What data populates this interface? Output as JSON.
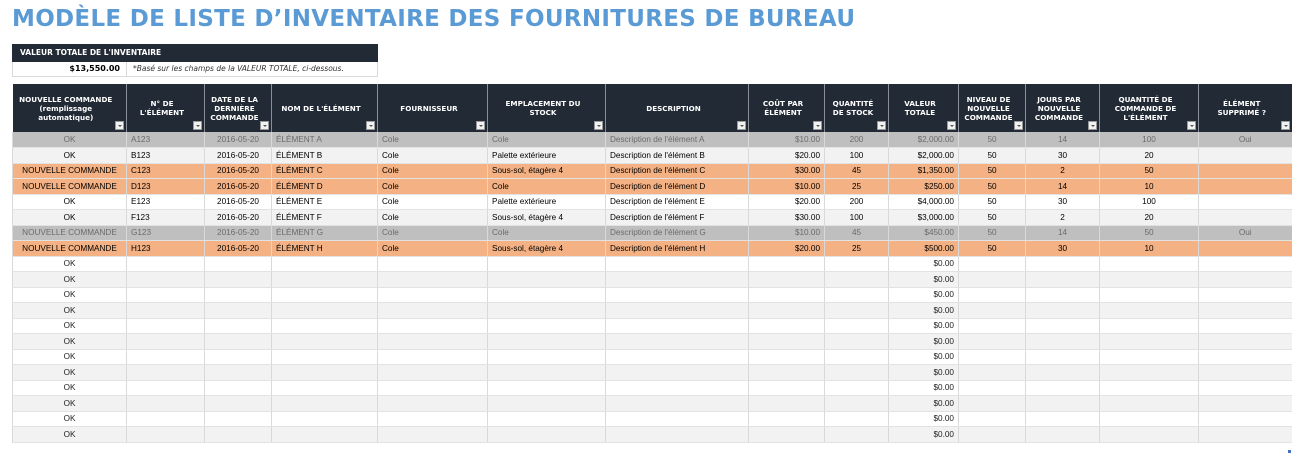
{
  "title": "MODÈLE DE LISTE D’INVENTAIRE DES FOURNITURES DE BUREAU",
  "summary": {
    "header": "VALEUR TOTALE DE L'INVENTAIRE",
    "value": "$13,550.00",
    "note": "*Basé sur les champs de la VALEUR TOTALE, ci-dessous."
  },
  "colors": {
    "title": "#5b9bd5",
    "header_bg": "#222a35",
    "reorder_row": "#f4b183",
    "deleted_row": "#bfbfbf",
    "stripe_row": "#f2f2f2"
  },
  "table": {
    "columns": [
      "NOUVELLE COMMANDE (remplissage automatique)",
      "N° DE L'ÉLÉMENT",
      "DATE DE LA DERNIÈRE COMMANDE",
      "NOM DE L'ÉLÉMENT",
      "FOURNISSEUR",
      "EMPLACEMENT DU STOCK",
      "DESCRIPTION",
      "COÛT PAR ÉLÉMENT",
      "QUANTITÉ DE STOCK",
      "VALEUR TOTALE",
      "NIVEAU DE NOUVELLE COMMANDE",
      "JOURS PAR NOUVELLE COMMANDE",
      "QUANTITÉ DE COMMANDE DE L'ÉLÉMENT",
      "ÉLÉMENT SUPPRIMÉ ?"
    ],
    "rows": [
      {
        "status": "OK",
        "id": "A123",
        "date": "2016-05-20",
        "name": "ÉLÉMENT A",
        "supplier": "Cole",
        "location": "Cole",
        "description": "Description de l'élément A",
        "cost": "$10.00",
        "qty": "200",
        "total": "$2,000.00",
        "reorder_level": "50",
        "days": "14",
        "order_qty": "100",
        "deleted": "Oui"
      },
      {
        "status": "OK",
        "id": "B123",
        "date": "2016-05-20",
        "name": "ÉLÉMENT B",
        "supplier": "Cole",
        "location": "Palette extérieure",
        "description": "Description de l'élément B",
        "cost": "$20.00",
        "qty": "100",
        "total": "$2,000.00",
        "reorder_level": "50",
        "days": "30",
        "order_qty": "20",
        "deleted": ""
      },
      {
        "status": "NOUVELLE COMMANDE",
        "id": "C123",
        "date": "2016-05-20",
        "name": "ÉLÉMENT C",
        "supplier": "Cole",
        "location": "Sous-sol, étagère 4",
        "description": "Description de l'élément C",
        "cost": "$30.00",
        "qty": "45",
        "total": "$1,350.00",
        "reorder_level": "50",
        "days": "2",
        "order_qty": "50",
        "deleted": ""
      },
      {
        "status": "NOUVELLE COMMANDE",
        "id": "D123",
        "date": "2016-05-20",
        "name": "ÉLÉMENT D",
        "supplier": "Cole",
        "location": "Cole",
        "description": "Description de l'élément D",
        "cost": "$10.00",
        "qty": "25",
        "total": "$250.00",
        "reorder_level": "50",
        "days": "14",
        "order_qty": "10",
        "deleted": ""
      },
      {
        "status": "OK",
        "id": "E123",
        "date": "2016-05-20",
        "name": "ÉLÉMENT E",
        "supplier": "Cole",
        "location": "Palette extérieure",
        "description": "Description de l'élément E",
        "cost": "$20.00",
        "qty": "200",
        "total": "$4,000.00",
        "reorder_level": "50",
        "days": "30",
        "order_qty": "100",
        "deleted": ""
      },
      {
        "status": "OK",
        "id": "F123",
        "date": "2016-05-20",
        "name": "ÉLÉMENT F",
        "supplier": "Cole",
        "location": "Sous-sol, étagère 4",
        "description": "Description de l'élément F",
        "cost": "$30.00",
        "qty": "100",
        "total": "$3,000.00",
        "reorder_level": "50",
        "days": "2",
        "order_qty": "20",
        "deleted": ""
      },
      {
        "status": "NOUVELLE COMMANDE",
        "id": "G123",
        "date": "2016-05-20",
        "name": "ÉLÉMENT G",
        "supplier": "Cole",
        "location": "Cole",
        "description": "Description de l'élément G",
        "cost": "$10.00",
        "qty": "45",
        "total": "$450.00",
        "reorder_level": "50",
        "days": "14",
        "order_qty": "50",
        "deleted": "Oui"
      },
      {
        "status": "NOUVELLE COMMANDE",
        "id": "H123",
        "date": "2016-05-20",
        "name": "ÉLÉMENT H",
        "supplier": "Cole",
        "location": "Sous-sol, étagère 4",
        "description": "Description de l'élément H",
        "cost": "$20.00",
        "qty": "25",
        "total": "$500.00",
        "reorder_level": "50",
        "days": "30",
        "order_qty": "10",
        "deleted": ""
      },
      {
        "status": "OK",
        "total": "$0.00"
      },
      {
        "status": "OK",
        "total": "$0.00"
      },
      {
        "status": "OK",
        "total": "$0.00"
      },
      {
        "status": "OK",
        "total": "$0.00"
      },
      {
        "status": "OK",
        "total": "$0.00"
      },
      {
        "status": "OK",
        "total": "$0.00"
      },
      {
        "status": "OK",
        "total": "$0.00"
      },
      {
        "status": "OK",
        "total": "$0.00"
      },
      {
        "status": "OK",
        "total": "$0.00"
      },
      {
        "status": "OK",
        "total": "$0.00"
      },
      {
        "status": "OK",
        "total": "$0.00"
      },
      {
        "status": "OK",
        "total": "$0.00"
      }
    ],
    "row_styles": [
      "deleted",
      "even",
      "reorder",
      "reorder",
      "odd",
      "even",
      "deleted",
      "reorder",
      "odd",
      "even",
      "odd",
      "even",
      "odd",
      "even",
      "odd",
      "even",
      "odd",
      "even",
      "odd",
      "even"
    ]
  }
}
